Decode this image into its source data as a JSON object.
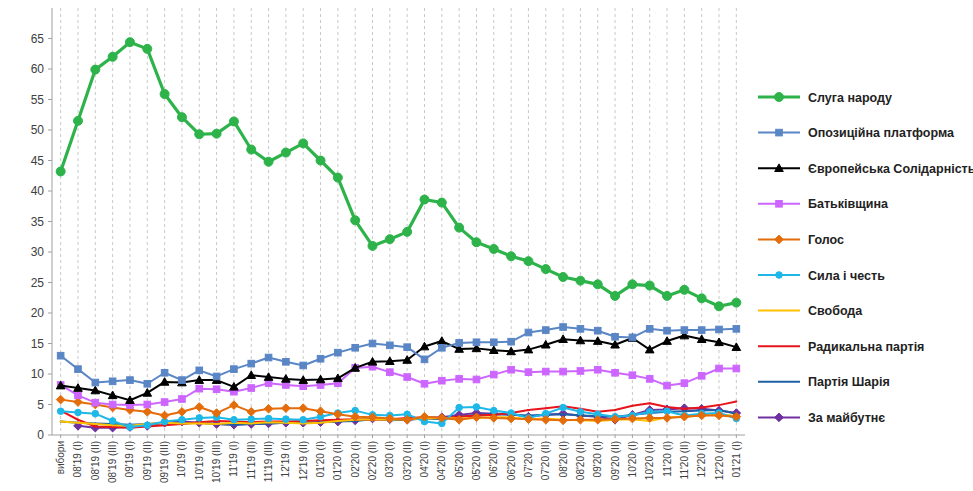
{
  "chart_data": {
    "type": "line",
    "categories": [
      "вибори",
      "08'19 (I)",
      "08'19 (II)",
      "08'19 (III)",
      "09'19 (I)",
      "09'19 (II)",
      "09'19 (III)",
      "10'19 (I)",
      "10'19 (II)",
      "10'19 (III)",
      "11'19 (I)",
      "11'19 (II)",
      "11'19 (III)",
      "12'19 (I)",
      "12'19 (II)",
      "01'20 (I)",
      "01'20 (II)",
      "02'20 (I)",
      "02'20 (II)",
      "03'20 (I)",
      "03'20 (II)",
      "04'20 (I)",
      "04'20 (II)",
      "05'20 (I)",
      "05'20 (II)",
      "06'20 (I)",
      "06'20 (II)",
      "07'20 (I)",
      "07'20 (II)",
      "08'20 (I)",
      "08'20 (II)",
      "09'20 (I)",
      "09'20 (II)",
      "10'20 (I)",
      "10'20 (II)",
      "11'20 (I)",
      "11'20 (II)",
      "12'20 (I)",
      "12'20 (II)",
      "01'21 (I)"
    ],
    "series": [
      {
        "name": "Слуга народу",
        "color": "#2db34a",
        "marker": "circle",
        "values": [
          43.2,
          51.5,
          59.9,
          62.0,
          64.4,
          63.3,
          55.9,
          52.1,
          49.3,
          49.4,
          51.4,
          46.8,
          44.8,
          46.3,
          47.8,
          45.0,
          42.2,
          35.2,
          31.0,
          32.1,
          33.3,
          38.6,
          38.1,
          34.0,
          31.6,
          30.5,
          29.3,
          28.5,
          27.2,
          25.9,
          25.3,
          24.7,
          22.8,
          24.7,
          24.5,
          22.8,
          23.8,
          22.4,
          21.1,
          21.7
        ]
      },
      {
        "name": "Опозиційна платформа",
        "color": "#5a86c6",
        "marker": "square",
        "values": [
          13.0,
          10.8,
          8.6,
          8.8,
          9.0,
          8.4,
          10.2,
          9.0,
          10.6,
          9.6,
          10.8,
          11.7,
          12.7,
          12.0,
          11.4,
          12.5,
          13.5,
          14.3,
          15.0,
          14.7,
          14.4,
          12.4,
          14.3,
          15.1,
          15.2,
          15.2,
          15.3,
          16.8,
          17.2,
          17.7,
          17.4,
          17.1,
          16.1,
          16.0,
          17.4,
          17.1,
          17.2,
          17.2,
          17.3,
          17.4
        ]
      },
      {
        "name": "Європейська Солідарність",
        "color": "#000000",
        "marker": "triangle",
        "values": [
          8.1,
          7.7,
          7.3,
          6.5,
          5.7,
          6.9,
          8.7,
          8.6,
          9.0,
          9.0,
          7.9,
          9.8,
          9.5,
          9.2,
          9.0,
          9.1,
          9.3,
          11.0,
          12.0,
          12.1,
          12.3,
          14.5,
          15.4,
          14.1,
          14.2,
          13.9,
          13.7,
          14.0,
          14.8,
          15.7,
          15.5,
          15.4,
          14.8,
          15.9,
          14.0,
          15.4,
          16.3,
          15.7,
          15.2,
          14.4
        ]
      },
      {
        "name": "Батьківщина",
        "color": "#cc66ff",
        "marker": "square",
        "values": [
          8.2,
          6.5,
          5.3,
          5.0,
          4.9,
          5.0,
          5.4,
          5.9,
          7.6,
          7.5,
          7.1,
          7.7,
          8.5,
          8.2,
          8.0,
          8.2,
          8.5,
          11.0,
          11.2,
          10.3,
          9.5,
          8.4,
          8.9,
          9.2,
          9.1,
          9.9,
          10.7,
          10.3,
          10.4,
          10.4,
          10.5,
          10.7,
          10.2,
          9.8,
          9.2,
          8.1,
          8.5,
          9.7,
          10.9,
          10.9
        ]
      },
      {
        "name": "Голос",
        "color": "#e46c0a",
        "marker": "diamond",
        "values": [
          5.8,
          5.4,
          5.0,
          4.5,
          4.1,
          3.8,
          3.2,
          3.8,
          4.6,
          3.6,
          4.9,
          3.8,
          4.3,
          4.4,
          4.4,
          3.9,
          3.4,
          3.0,
          2.9,
          2.7,
          2.5,
          3.0,
          2.8,
          2.5,
          2.9,
          2.8,
          2.7,
          2.6,
          2.5,
          2.4,
          2.5,
          2.5,
          2.6,
          2.7,
          2.8,
          2.8,
          3.0,
          3.2,
          3.2,
          3.0
        ]
      },
      {
        "name": "Сила і честь",
        "color": "#1eb8e8",
        "marker": "circle",
        "values": [
          3.9,
          3.7,
          3.5,
          2.3,
          1.3,
          1.6,
          2.2,
          2.5,
          2.8,
          2.9,
          2.5,
          2.6,
          2.7,
          2.6,
          2.5,
          3.0,
          3.6,
          4.0,
          3.3,
          3.2,
          3.4,
          2.2,
          1.9,
          4.5,
          4.6,
          4.0,
          3.6,
          2.8,
          3.5,
          4.5,
          3.8,
          3.4,
          3.0,
          3.2,
          3.8,
          3.9,
          3.2,
          3.5,
          3.6,
          2.7
        ]
      },
      {
        "name": "Свобода",
        "color": "#ffc000",
        "marker": "none",
        "values": [
          2.2,
          2.0,
          1.8,
          1.6,
          1.5,
          1.8,
          2.0,
          1.9,
          1.9,
          1.8,
          2.0,
          1.9,
          2.1,
          2.0,
          1.9,
          2.0,
          2.3,
          2.5,
          2.6,
          2.5,
          2.6,
          2.7,
          2.8,
          2.7,
          2.8,
          2.9,
          2.9,
          2.6,
          2.7,
          2.5,
          2.4,
          2.3,
          2.5,
          2.6,
          2.3,
          2.9,
          3.0,
          3.2,
          3.4,
          3.1
        ]
      },
      {
        "name": "Радикальна партія",
        "color": "#e8141b",
        "marker": "none",
        "values": [
          4.0,
          2.5,
          1.4,
          1.3,
          1.2,
          1.4,
          1.6,
          1.8,
          2.1,
          2.3,
          2.2,
          2.1,
          2.2,
          2.2,
          2.3,
          2.4,
          2.5,
          2.6,
          2.5,
          2.6,
          2.8,
          2.9,
          2.8,
          3.0,
          3.2,
          3.3,
          3.6,
          4.1,
          4.4,
          4.7,
          4.3,
          3.8,
          4.1,
          4.8,
          5.2,
          4.6,
          4.3,
          4.5,
          4.9,
          5.5
        ]
      },
      {
        "name": "Партія Шарія",
        "color": "#1f5fa3",
        "marker": "none",
        "values": [
          2.2,
          2.0,
          1.9,
          1.8,
          1.7,
          1.8,
          2.0,
          1.9,
          2.0,
          1.8,
          1.7,
          1.8,
          1.9,
          2.0,
          2.0,
          2.1,
          2.2,
          2.3,
          2.6,
          2.4,
          2.5,
          2.7,
          2.6,
          3.0,
          3.3,
          3.4,
          3.3,
          3.2,
          3.3,
          3.4,
          3.2,
          3.1,
          3.0,
          3.3,
          3.6,
          3.8,
          3.9,
          4.0,
          4.1,
          3.5
        ]
      },
      {
        "name": "За майбутнє",
        "color": "#7030a0",
        "marker": "diamond",
        "values": [
          null,
          1.5,
          1.2,
          1.2,
          1.3,
          1.5,
          2.0,
          2.2,
          2.0,
          1.8,
          1.7,
          1.8,
          1.9,
          2.0,
          2.0,
          2.1,
          2.2,
          2.4,
          2.7,
          2.6,
          2.5,
          2.8,
          2.9,
          3.3,
          3.6,
          3.5,
          3.4,
          3.0,
          3.3,
          3.5,
          3.2,
          3.0,
          2.5,
          3.3,
          4.1,
          4.2,
          4.4,
          4.3,
          4.0,
          3.6
        ]
      }
    ],
    "ylim": [
      0,
      70
    ],
    "yticks": [
      0,
      5,
      10,
      15,
      20,
      25,
      30,
      35,
      40,
      45,
      50,
      55,
      60,
      65
    ],
    "grid": true,
    "legend": "right"
  }
}
